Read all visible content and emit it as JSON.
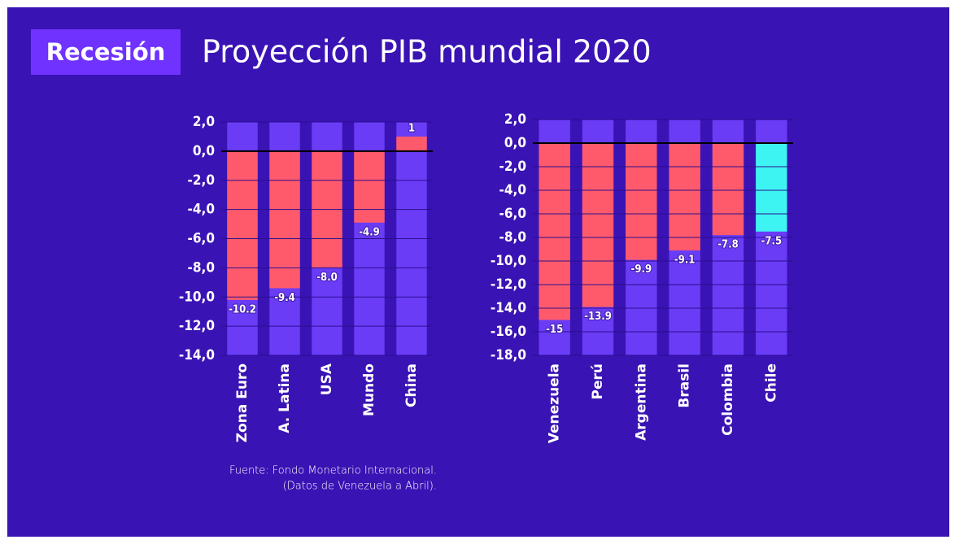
{
  "header": {
    "badge": "Recesión",
    "title": "Proyección PIB mundial 2020"
  },
  "source": [
    "Fuente: Fondo Monetario Internacional.",
    "(Datos de Venezuela a Abril)."
  ],
  "chart_data": [
    {
      "type": "bar",
      "categories": [
        "Zona Euro",
        "A. Latina",
        "USA",
        "Mundo",
        "China"
      ],
      "values": [
        -10.2,
        -9.4,
        -8.0,
        -4.9,
        1
      ],
      "value_labels": [
        "-10.2",
        "-9.4",
        "-8.0",
        "-4.9",
        "1"
      ],
      "colors": [
        "#ff5a6b",
        "#ff5a6b",
        "#ff5a6b",
        "#ff5a6b",
        "#ff5a6b"
      ],
      "column_color": "#6a3cf6",
      "ylim": [
        -14,
        2
      ],
      "yticks": [
        {
          "value": 2,
          "label": "2,0"
        },
        {
          "value": 0,
          "label": "0,0"
        },
        {
          "value": -2,
          "label": "-2,0"
        },
        {
          "value": -4,
          "label": "-4,0"
        },
        {
          "value": -6,
          "label": "-6,0"
        },
        {
          "value": -8,
          "label": "-8,0"
        },
        {
          "value": -10,
          "label": "-10,0"
        },
        {
          "value": -12,
          "label": "-12,0"
        },
        {
          "value": -14,
          "label": "-14,0"
        }
      ],
      "grid": true
    },
    {
      "type": "bar",
      "categories": [
        "Venezuela",
        "Perú",
        "Argentina",
        "Brasil",
        "Colombia",
        "Chile"
      ],
      "values": [
        -15,
        -13.9,
        -9.9,
        -9.1,
        -7.8,
        -7.5
      ],
      "value_labels": [
        "-15",
        "-13.9",
        "-9.9",
        "-9.1",
        "-7.8",
        "-7.5"
      ],
      "colors": [
        "#ff5a6b",
        "#ff5a6b",
        "#ff5a6b",
        "#ff5a6b",
        "#ff5a6b",
        "#3ef4f2"
      ],
      "column_color": "#6a3cf6",
      "ylim": [
        -18,
        2
      ],
      "yticks": [
        {
          "value": 2,
          "label": "2,0"
        },
        {
          "value": 0,
          "label": "0,0"
        },
        {
          "value": -2,
          "label": "-2,0"
        },
        {
          "value": -4,
          "label": "-4,0"
        },
        {
          "value": -6,
          "label": "-6,0"
        },
        {
          "value": -8,
          "label": "-8,0"
        },
        {
          "value": -10,
          "label": "-10,0"
        },
        {
          "value": -12,
          "label": "-12,0"
        },
        {
          "value": -14,
          "label": "-14,0"
        },
        {
          "value": -16,
          "label": "-16,0"
        },
        {
          "value": -18,
          "label": "-18,0"
        }
      ],
      "grid": true
    }
  ]
}
